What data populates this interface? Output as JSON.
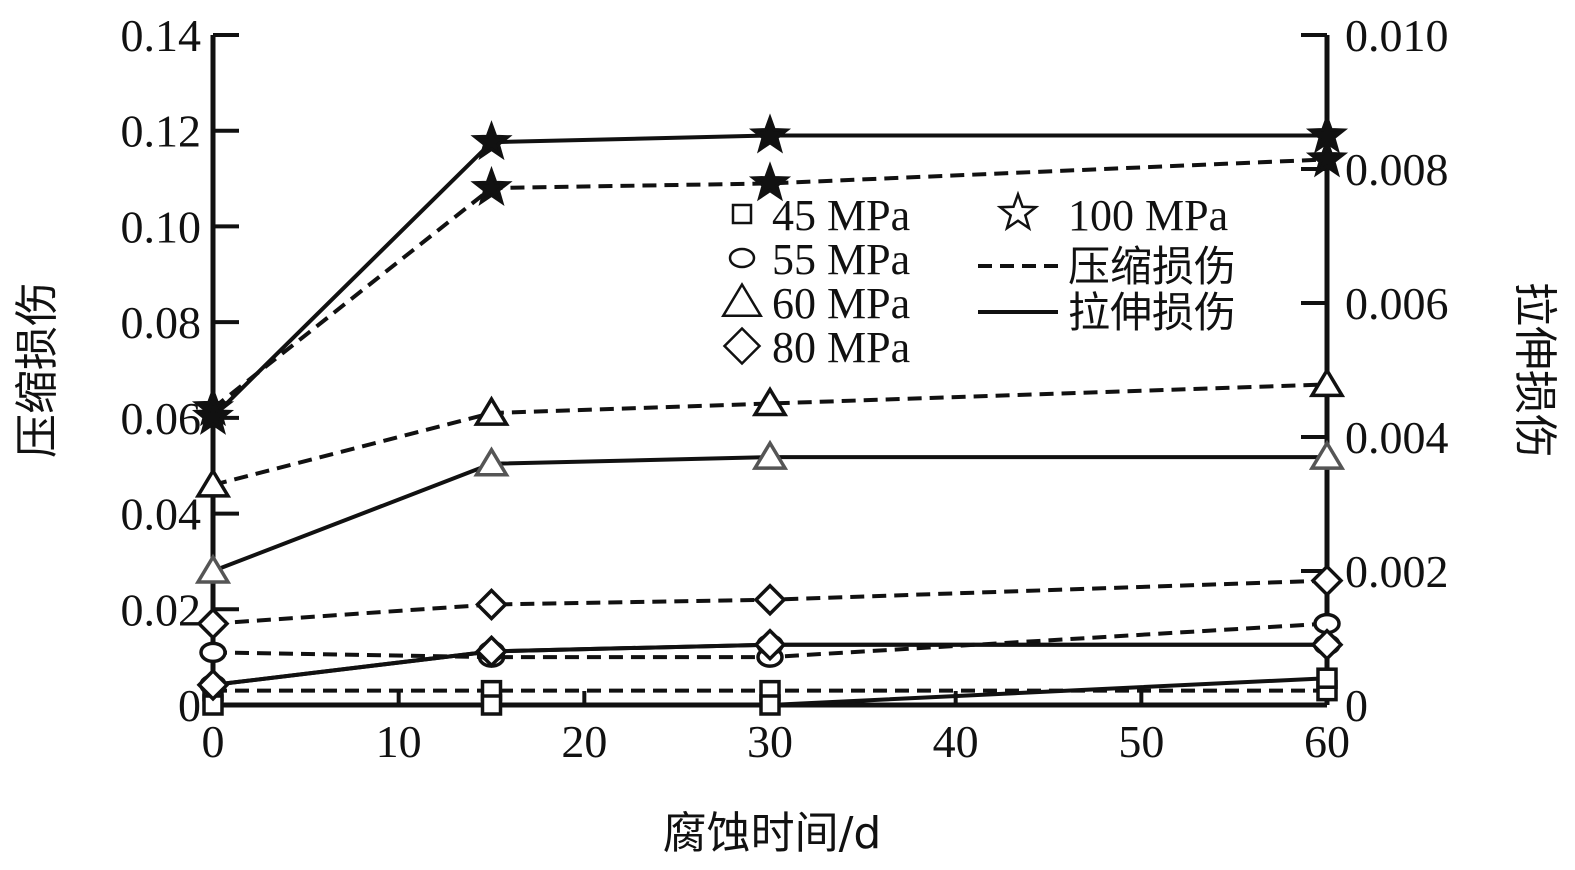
{
  "chart_data": {
    "type": "line",
    "xlabel": "腐蚀时间/d",
    "ylabel_left": "压缩损伤",
    "ylabel_right": "拉伸损伤",
    "x": [
      0,
      15,
      30,
      60
    ],
    "xlim": [
      0,
      60
    ],
    "ylim_left": [
      0,
      0.14
    ],
    "ylim_right": [
      0,
      0.01
    ],
    "x_ticks": [
      "0",
      "10",
      "20",
      "30",
      "40",
      "50",
      "60"
    ],
    "y_left_ticks": [
      "0",
      "0.02",
      "0.04",
      "0.06",
      "0.08",
      "0.10",
      "0.12",
      "0.14"
    ],
    "y_right_ticks": [
      "0",
      "0.002",
      "0.004",
      "0.006",
      "0.008",
      "0.010"
    ],
    "legend": {
      "position": "upper-center",
      "markers": [
        {
          "label": "45 MPa",
          "marker": "square"
        },
        {
          "label": "55 MPa",
          "marker": "circle"
        },
        {
          "label": "60 MPa",
          "marker": "triangle"
        },
        {
          "label": "80 MPa",
          "marker": "diamond"
        },
        {
          "label": "100 MPa",
          "marker": "star"
        }
      ],
      "lines": [
        {
          "label": "压缩损伤",
          "style": "dashed"
        },
        {
          "label": "拉伸损伤",
          "style": "solid"
        }
      ]
    },
    "series": [
      {
        "strength": "45 MPa",
        "damage": "压缩损伤",
        "axis": "left",
        "marker": "square",
        "style": "dashed",
        "values": [
          0.003,
          0.003,
          0.003,
          0.003
        ]
      },
      {
        "strength": "45 MPa",
        "damage": "拉伸损伤",
        "axis": "right",
        "marker": "square",
        "style": "solid",
        "values": [
          0.0,
          0.0,
          0.0,
          0.0004
        ]
      },
      {
        "strength": "55 MPa",
        "damage": "压缩损伤",
        "axis": "left",
        "marker": "circle",
        "style": "dashed",
        "values": [
          0.011,
          0.01,
          0.01,
          0.017
        ]
      },
      {
        "strength": "55 MPa",
        "damage": "拉伸损伤",
        "axis": "right",
        "marker": "circle",
        "style": "solid",
        "values": [
          0.0003,
          0.0008,
          0.0009,
          0.0009
        ]
      },
      {
        "strength": "60 MPa",
        "damage": "压缩损伤",
        "axis": "left",
        "marker": "triangle",
        "style": "dashed",
        "values": [
          0.046,
          0.061,
          0.063,
          0.067
        ]
      },
      {
        "strength": "60 MPa",
        "damage": "拉伸损伤",
        "axis": "right",
        "marker": "triangle",
        "style": "solid",
        "values": [
          0.002,
          0.0036,
          0.0037,
          0.0037
        ]
      },
      {
        "strength": "80 MPa",
        "damage": "压缩损伤",
        "axis": "left",
        "marker": "diamond",
        "style": "dashed",
        "values": [
          0.017,
          0.021,
          0.022,
          0.026
        ]
      },
      {
        "strength": "80 MPa",
        "damage": "拉伸损伤",
        "axis": "right",
        "marker": "diamond",
        "style": "solid",
        "values": [
          0.0003,
          0.0008,
          0.0009,
          0.0009
        ]
      },
      {
        "strength": "100 MPa",
        "damage": "压缩损伤",
        "axis": "left",
        "marker": "star",
        "style": "dashed",
        "values": [
          0.062,
          0.108,
          0.109,
          0.114
        ]
      },
      {
        "strength": "100 MPa",
        "damage": "拉伸损伤",
        "axis": "right",
        "marker": "star",
        "style": "solid",
        "values": [
          0.0043,
          0.0084,
          0.0085,
          0.0085
        ]
      }
    ]
  }
}
